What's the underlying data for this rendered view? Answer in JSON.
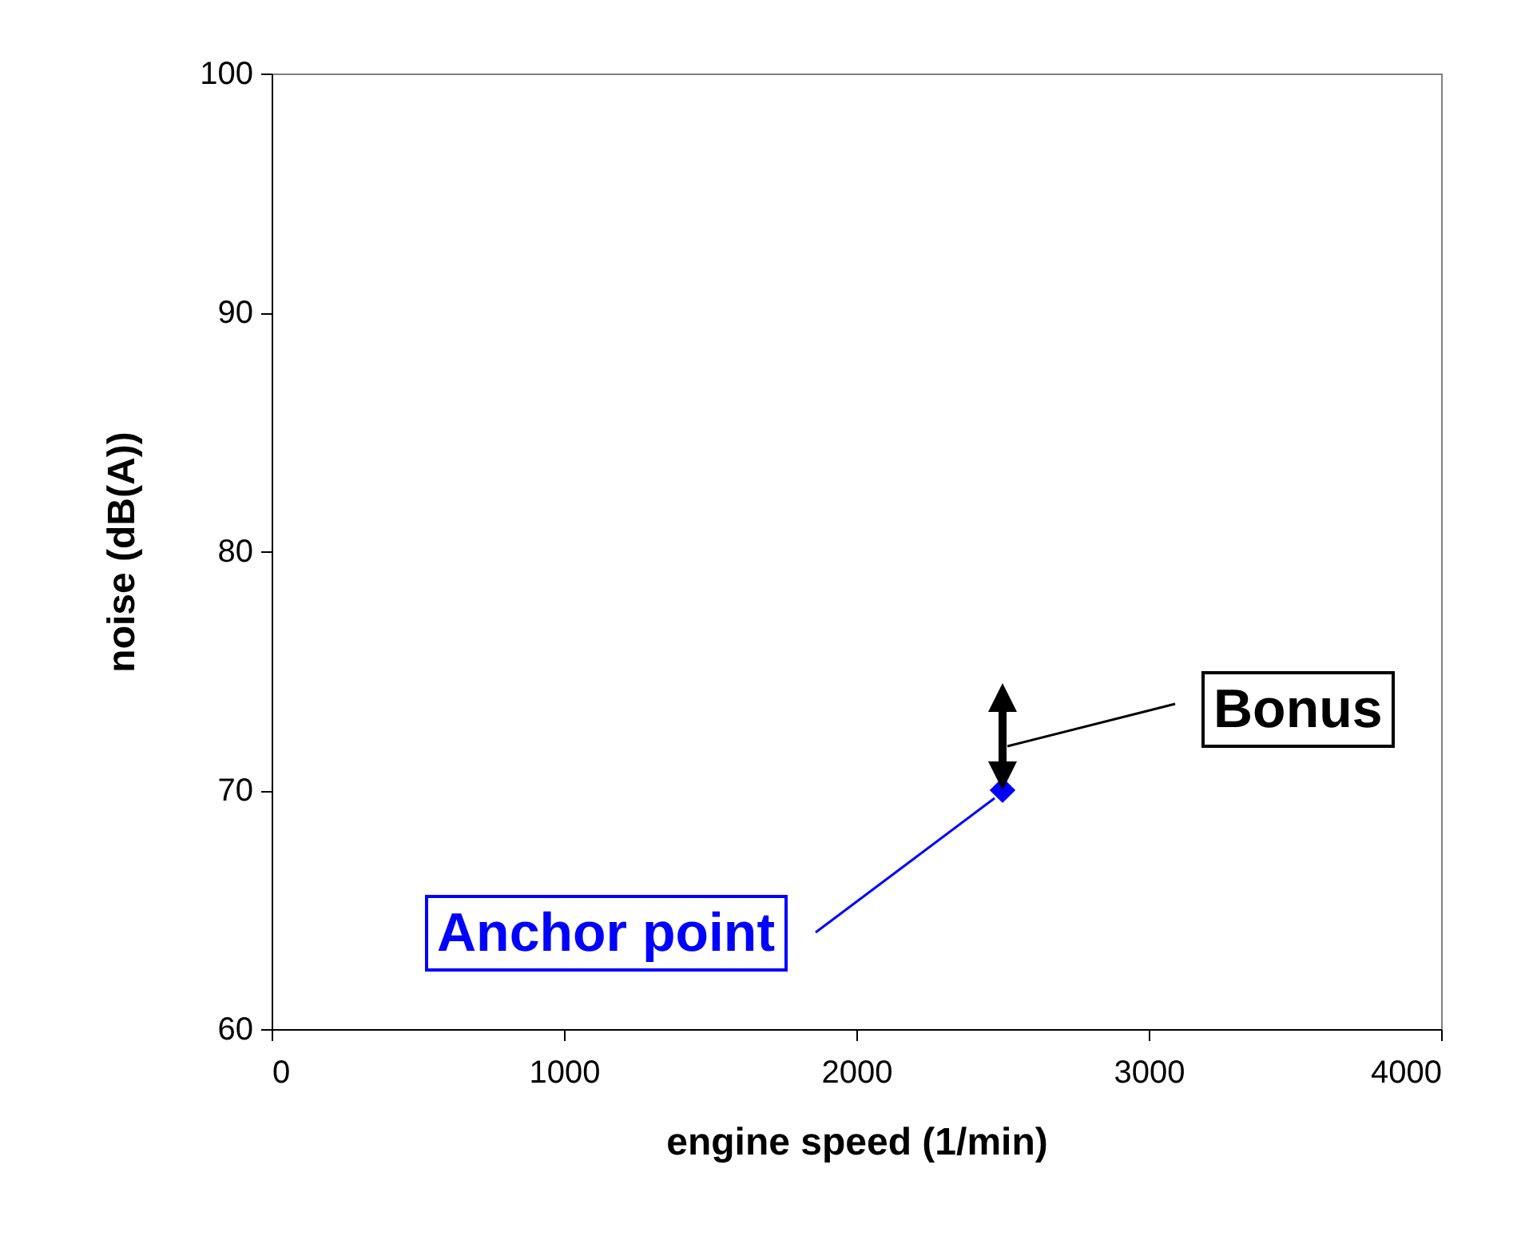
{
  "chart_data": {
    "type": "scatter",
    "xlabel": "engine speed (1/min)",
    "ylabel": "noise (dB(A))",
    "x": [
      2500
    ],
    "values": [
      70
    ],
    "color": "#0000ff",
    "marker": "diamond",
    "xlim": [
      0,
      4000
    ],
    "xticks": [
      0,
      1000,
      2000,
      3000,
      4000
    ],
    "ylim": [
      60,
      100
    ],
    "yticks": [
      60,
      70,
      80,
      90,
      100
    ],
    "grid": false,
    "annotations": [
      {
        "text": "Anchor point",
        "x": 2500,
        "y": 70
      },
      "Bonus"
    ]
  }
}
